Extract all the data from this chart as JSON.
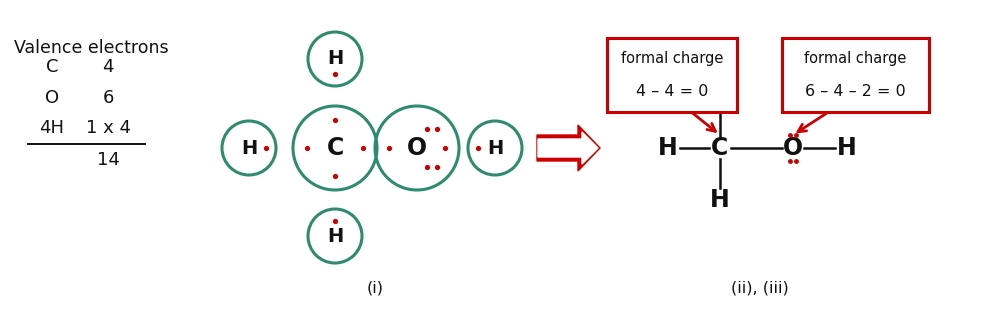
{
  "bg_color": "#ffffff",
  "teal": "#2e8b6e",
  "red": "#cc0000",
  "dark": "#111111",
  "valence_title": "Valence electrons",
  "valence_total": "14",
  "label_i": "(i)",
  "label_ii": "(ii), (iii)",
  "fc_box1_line1": "formal charge",
  "fc_box1_line2": "4 – 4 = 0",
  "fc_box2_line1": "formal charge",
  "fc_box2_line2": "6 – 4 – 2 = 0"
}
